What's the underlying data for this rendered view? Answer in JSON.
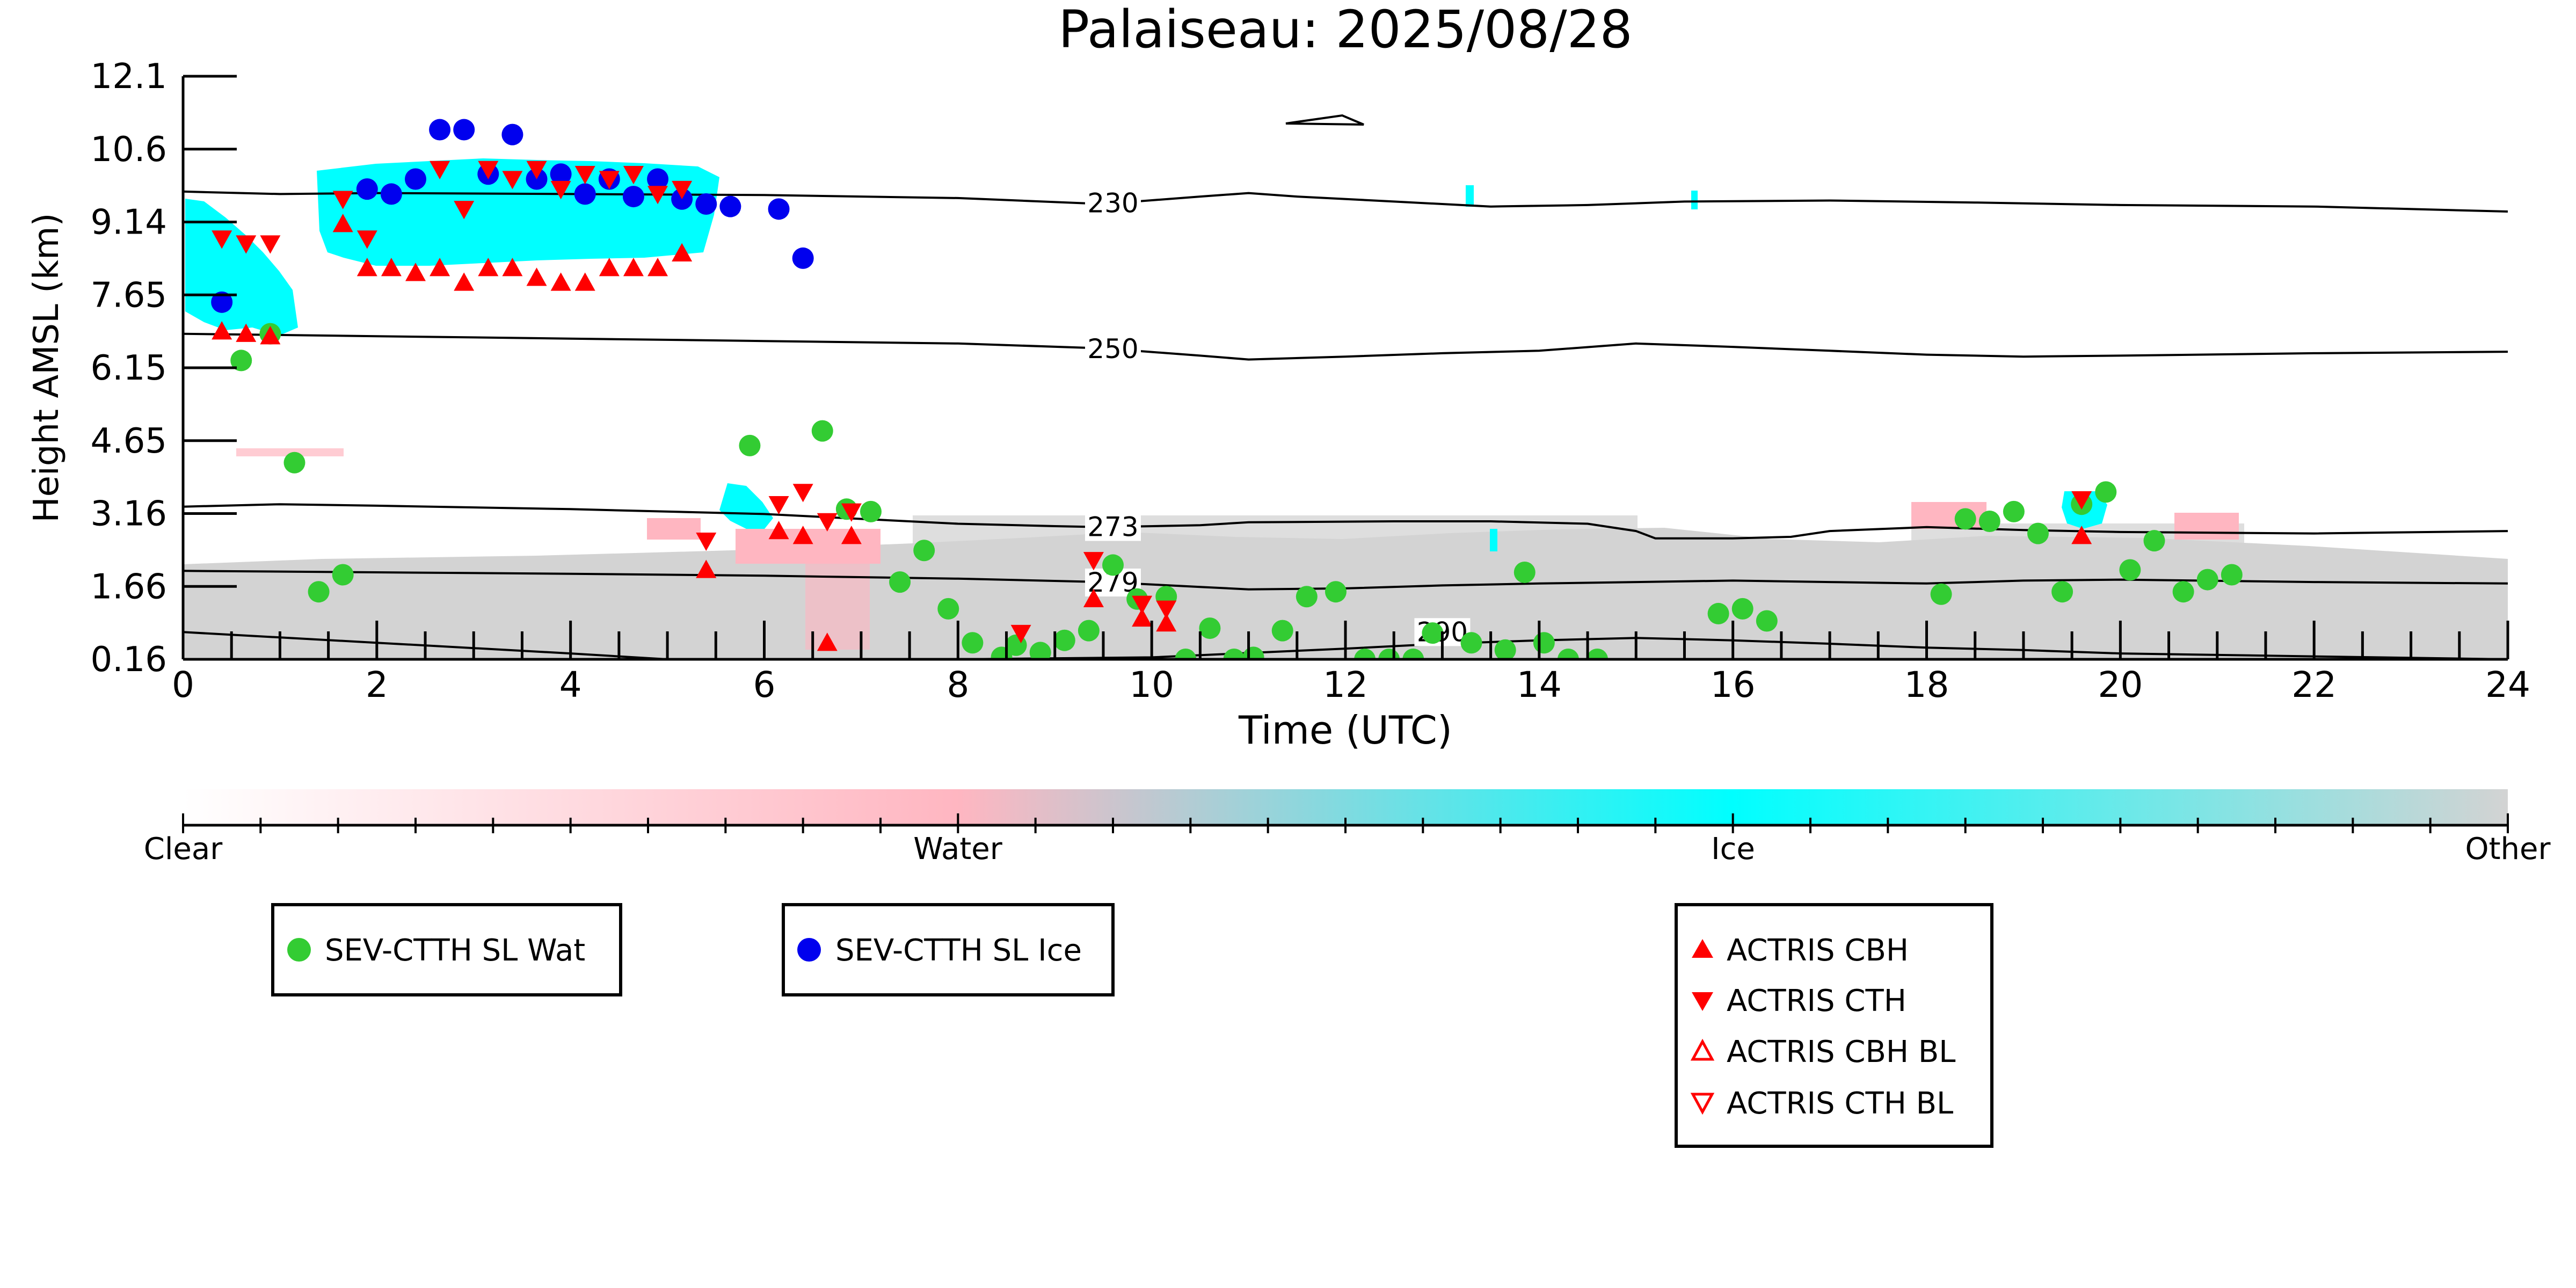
{
  "chart_data": {
    "type": "scatter",
    "title": "Palaiseau: 2025/08/28",
    "xlabel": "Time (UTC)",
    "ylabel": "Height AMSL (km)",
    "xlim": [
      0,
      24
    ],
    "ylim": [
      0.16,
      12.1
    ],
    "x_ticks": [
      "0",
      "2",
      "4",
      "6",
      "8",
      "10",
      "12",
      "14",
      "16",
      "18",
      "20",
      "22",
      "24"
    ],
    "y_ticks": [
      "0.16",
      "1.66",
      "3.16",
      "4.65",
      "6.15",
      "7.65",
      "9.14",
      "10.6",
      "12.1"
    ],
    "grid": false,
    "colors": {
      "water": "#ffb6c1",
      "ice": "#00ffff",
      "other": "#d3d3d3",
      "sev_wat": "#33cc33",
      "sev_ice": "#0000ee",
      "actris": "#ff0000"
    },
    "colorbar": {
      "labels": [
        "Clear",
        "Water",
        "Ice",
        "Other"
      ],
      "stops": [
        "#ffffff",
        "#ffb6c1",
        "#00ffff",
        "#d3d3d3"
      ]
    },
    "legends": [
      {
        "entries": [
          {
            "label": "SEV-CTTH SL Wat",
            "marker": "circle",
            "color": "#33cc33"
          }
        ]
      },
      {
        "entries": [
          {
            "label": "SEV-CTTH SL Ice",
            "marker": "circle",
            "color": "#0000ee"
          }
        ]
      },
      {
        "entries": [
          {
            "label": "ACTRIS CBH",
            "marker": "triangle-up",
            "color": "#ff0000"
          },
          {
            "label": "ACTRIS CTH",
            "marker": "triangle-down",
            "color": "#ff0000"
          },
          {
            "label": "ACTRIS CBH BL",
            "marker": "triangle-up-open",
            "color": "#ff0000"
          },
          {
            "label": "ACTRIS CTH BL",
            "marker": "triangle-down-open",
            "color": "#ff0000"
          }
        ]
      }
    ],
    "contours": [
      {
        "label": "230",
        "label_at": 9.6,
        "points": [
          [
            0,
            9.75
          ],
          [
            1,
            9.7
          ],
          [
            2,
            9.72
          ],
          [
            4,
            9.7
          ],
          [
            6,
            9.68
          ],
          [
            8,
            9.62
          ],
          [
            9.5,
            9.5
          ],
          [
            10.5,
            9.65
          ],
          [
            11,
            9.72
          ],
          [
            11.5,
            9.65
          ],
          [
            12.5,
            9.55
          ],
          [
            13.5,
            9.45
          ],
          [
            14.5,
            9.48
          ],
          [
            15.5,
            9.55
          ],
          [
            17,
            9.57
          ],
          [
            18.5,
            9.53
          ],
          [
            20,
            9.48
          ],
          [
            22,
            9.45
          ],
          [
            24,
            9.35
          ]
        ]
      },
      {
        "label": "250",
        "label_at": 9.6,
        "points": [
          [
            0,
            6.85
          ],
          [
            2,
            6.8
          ],
          [
            4,
            6.75
          ],
          [
            6,
            6.7
          ],
          [
            8,
            6.65
          ],
          [
            9.5,
            6.55
          ],
          [
            10.5,
            6.4
          ],
          [
            11,
            6.32
          ],
          [
            12,
            6.38
          ],
          [
            13,
            6.45
          ],
          [
            14,
            6.5
          ],
          [
            15,
            6.65
          ],
          [
            16,
            6.58
          ],
          [
            17,
            6.5
          ],
          [
            18,
            6.42
          ],
          [
            19,
            6.38
          ],
          [
            20,
            6.4
          ],
          [
            22,
            6.45
          ],
          [
            24,
            6.48
          ]
        ]
      },
      {
        "label": "273",
        "label_at": 9.6,
        "points": [
          [
            0,
            3.3
          ],
          [
            1,
            3.35
          ],
          [
            2,
            3.32
          ],
          [
            4,
            3.25
          ],
          [
            6,
            3.15
          ],
          [
            7,
            3.05
          ],
          [
            8,
            2.95
          ],
          [
            9,
            2.9
          ],
          [
            9.5,
            2.88
          ],
          [
            10.5,
            2.92
          ],
          [
            11,
            2.98
          ],
          [
            12.5,
            3.0
          ],
          [
            13.5,
            3.0
          ],
          [
            14.5,
            2.95
          ],
          [
            15,
            2.8
          ],
          [
            15.2,
            2.65
          ],
          [
            16,
            2.65
          ],
          [
            16.6,
            2.68
          ],
          [
            17,
            2.8
          ],
          [
            18,
            2.88
          ],
          [
            19,
            2.82
          ],
          [
            20,
            2.78
          ],
          [
            22,
            2.75
          ],
          [
            24,
            2.8
          ]
        ]
      },
      {
        "label": "279",
        "label_at": 9.6,
        "points": [
          [
            0,
            1.98
          ],
          [
            2,
            1.95
          ],
          [
            4,
            1.92
          ],
          [
            6,
            1.88
          ],
          [
            8,
            1.82
          ],
          [
            9.5,
            1.75
          ],
          [
            10.5,
            1.65
          ],
          [
            11,
            1.6
          ],
          [
            12,
            1.62
          ],
          [
            13,
            1.68
          ],
          [
            14,
            1.72
          ],
          [
            15,
            1.75
          ],
          [
            16,
            1.78
          ],
          [
            17,
            1.75
          ],
          [
            18,
            1.72
          ],
          [
            19,
            1.78
          ],
          [
            20,
            1.8
          ],
          [
            22,
            1.75
          ],
          [
            24,
            1.72
          ]
        ]
      },
      {
        "label": "290",
        "label_at": 13.0,
        "points": [
          [
            0,
            0.72
          ],
          [
            2,
            0.5
          ],
          [
            4,
            0.28
          ],
          [
            5,
            0.16
          ]
        ]
      },
      {
        "label": "",
        "label_at": 0,
        "points": [
          [
            8,
            0.16
          ],
          [
            10,
            0.2
          ],
          [
            12,
            0.38
          ],
          [
            13,
            0.48
          ],
          [
            14,
            0.55
          ],
          [
            15,
            0.6
          ],
          [
            16,
            0.55
          ],
          [
            17,
            0.48
          ],
          [
            18,
            0.4
          ],
          [
            19,
            0.35
          ],
          [
            20,
            0.28
          ],
          [
            22,
            0.22
          ],
          [
            24,
            0.16
          ]
        ]
      }
    ],
    "sev_ctth_sl_wat": [
      [
        0.6,
        6.3
      ],
      [
        0.9,
        6.85
      ],
      [
        1.15,
        4.2
      ],
      [
        1.4,
        1.55
      ],
      [
        1.65,
        1.9
      ],
      [
        5.85,
        4.55
      ],
      [
        6.6,
        4.85
      ],
      [
        6.85,
        3.25
      ],
      [
        7.1,
        3.2
      ],
      [
        7.4,
        1.75
      ],
      [
        7.65,
        2.4
      ],
      [
        7.9,
        1.2
      ],
      [
        8.15,
        0.5
      ],
      [
        8.45,
        0.2
      ],
      [
        8.6,
        0.45
      ],
      [
        8.85,
        0.3
      ],
      [
        9.1,
        0.55
      ],
      [
        9.35,
        0.75
      ],
      [
        9.6,
        2.1
      ],
      [
        9.85,
        1.4
      ],
      [
        10.15,
        1.45
      ],
      [
        10.35,
        0.16
      ],
      [
        10.6,
        0.8
      ],
      [
        10.85,
        0.16
      ],
      [
        11.05,
        0.2
      ],
      [
        11.35,
        0.75
      ],
      [
        11.6,
        1.45
      ],
      [
        11.9,
        1.55
      ],
      [
        12.2,
        0.16
      ],
      [
        12.45,
        0.16
      ],
      [
        12.7,
        0.16
      ],
      [
        12.9,
        0.7
      ],
      [
        13.3,
        0.5
      ],
      [
        13.65,
        0.35
      ],
      [
        14.05,
        0.5
      ],
      [
        14.3,
        0.16
      ],
      [
        14.6,
        0.16
      ],
      [
        13.85,
        1.95
      ],
      [
        15.85,
        1.1
      ],
      [
        16.1,
        1.2
      ],
      [
        16.35,
        0.95
      ],
      [
        18.15,
        1.5
      ],
      [
        18.4,
        3.05
      ],
      [
        18.65,
        3.0
      ],
      [
        18.9,
        3.2
      ],
      [
        19.15,
        2.75
      ],
      [
        19.4,
        1.55
      ],
      [
        19.6,
        3.35
      ],
      [
        19.85,
        3.6
      ],
      [
        20.1,
        2.0
      ],
      [
        20.35,
        2.6
      ],
      [
        20.65,
        1.55
      ],
      [
        20.9,
        1.8
      ],
      [
        21.15,
        1.9
      ]
    ],
    "sev_ctth_sl_ice": [
      [
        0.4,
        7.5
      ],
      [
        1.9,
        9.8
      ],
      [
        2.15,
        9.7
      ],
      [
        2.4,
        10.0
      ],
      [
        2.65,
        11.0
      ],
      [
        2.9,
        11.0
      ],
      [
        3.15,
        10.1
      ],
      [
        3.4,
        10.9
      ],
      [
        3.65,
        10.0
      ],
      [
        3.9,
        10.1
      ],
      [
        4.15,
        9.7
      ],
      [
        4.4,
        10.0
      ],
      [
        4.65,
        9.65
      ],
      [
        4.9,
        10.0
      ],
      [
        5.15,
        9.6
      ],
      [
        5.4,
        9.5
      ],
      [
        5.65,
        9.45
      ],
      [
        6.15,
        9.4
      ],
      [
        6.4,
        8.4
      ]
    ],
    "actris_cbh": [
      [
        0.4,
        6.9
      ],
      [
        0.65,
        6.85
      ],
      [
        0.9,
        6.8
      ],
      [
        1.65,
        9.1
      ],
      [
        1.9,
        8.2
      ],
      [
        2.15,
        8.2
      ],
      [
        2.4,
        8.1
      ],
      [
        2.65,
        8.2
      ],
      [
        2.9,
        7.9
      ],
      [
        3.15,
        8.2
      ],
      [
        3.4,
        8.2
      ],
      [
        3.65,
        8.0
      ],
      [
        3.9,
        7.9
      ],
      [
        4.15,
        7.9
      ],
      [
        4.4,
        8.2
      ],
      [
        4.65,
        8.2
      ],
      [
        4.9,
        8.2
      ],
      [
        5.15,
        8.5
      ],
      [
        5.4,
        2.0
      ],
      [
        6.15,
        2.8
      ],
      [
        6.4,
        2.7
      ],
      [
        6.65,
        0.5
      ],
      [
        6.9,
        2.7
      ],
      [
        9.4,
        1.4
      ],
      [
        9.9,
        1.0
      ],
      [
        10.15,
        0.9
      ],
      [
        19.6,
        2.7
      ]
    ],
    "actris_cth": [
      [
        0.4,
        8.8
      ],
      [
        0.65,
        8.7
      ],
      [
        0.9,
        8.7
      ],
      [
        1.65,
        9.6
      ],
      [
        1.9,
        8.8
      ],
      [
        2.65,
        10.2
      ],
      [
        2.9,
        9.4
      ],
      [
        3.15,
        10.2
      ],
      [
        3.4,
        10.0
      ],
      [
        3.65,
        10.2
      ],
      [
        3.9,
        9.8
      ],
      [
        4.15,
        10.1
      ],
      [
        4.4,
        10.0
      ],
      [
        4.65,
        10.1
      ],
      [
        4.9,
        9.7
      ],
      [
        5.15,
        9.8
      ],
      [
        5.4,
        2.6
      ],
      [
        6.15,
        3.35
      ],
      [
        6.4,
        3.6
      ],
      [
        6.65,
        3.0
      ],
      [
        6.9,
        3.2
      ],
      [
        8.65,
        0.7
      ],
      [
        9.4,
        2.2
      ],
      [
        9.9,
        1.3
      ],
      [
        10.15,
        1.2
      ],
      [
        19.6,
        3.45
      ]
    ],
    "actris_cbh_bl": [],
    "actris_cth_bl": []
  }
}
